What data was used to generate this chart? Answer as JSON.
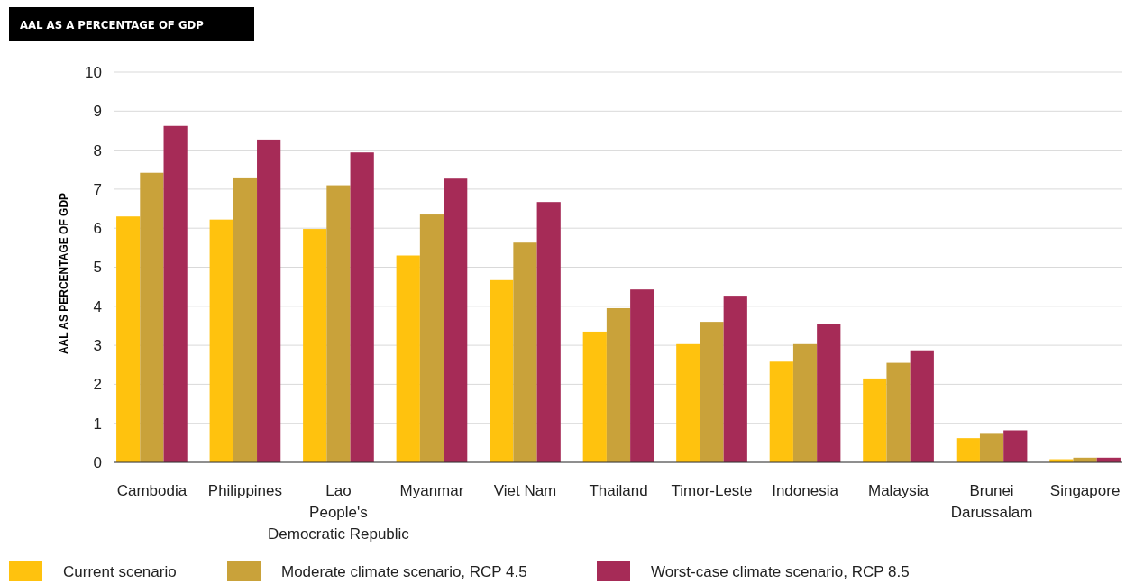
{
  "chart_data": {
    "type": "bar",
    "title": "AAL AS A PERCENTAGE OF GDP",
    "ylabel": "AAL AS PERCENTAGE OF GDP",
    "categories": [
      "Cambodia",
      "Philippines",
      "Lao\nPeople's\nDemocratic Republic",
      "Myanmar",
      "Viet Nam",
      "Thailand",
      "Timor-Leste",
      "Indonesia",
      "Malaysia",
      "Brunei\nDarussalam",
      "Singapore"
    ],
    "series": [
      {
        "name": "Current scenario",
        "color": "#ffc20e",
        "values": [
          6.3,
          6.22,
          5.98,
          5.3,
          4.67,
          3.35,
          3.03,
          2.58,
          2.15,
          0.62,
          0.08
        ]
      },
      {
        "name": "Moderate climate scenario, RCP 4.5",
        "color": "#c9a23a",
        "values": [
          7.42,
          7.3,
          7.1,
          6.35,
          5.63,
          3.95,
          3.6,
          3.03,
          2.55,
          0.73,
          0.12
        ]
      },
      {
        "name": "Worst-case climate scenario, RCP 8.5",
        "color": "#a62b57",
        "values": [
          8.62,
          8.27,
          7.94,
          7.27,
          6.67,
          4.43,
          4.27,
          3.55,
          2.87,
          0.82,
          0.12
        ]
      }
    ],
    "ylim": [
      0,
      10
    ],
    "yticks": [
      0,
      1,
      2,
      3,
      4,
      5,
      6,
      7,
      8,
      9,
      10
    ],
    "grid": "y",
    "legend": "bottom"
  }
}
